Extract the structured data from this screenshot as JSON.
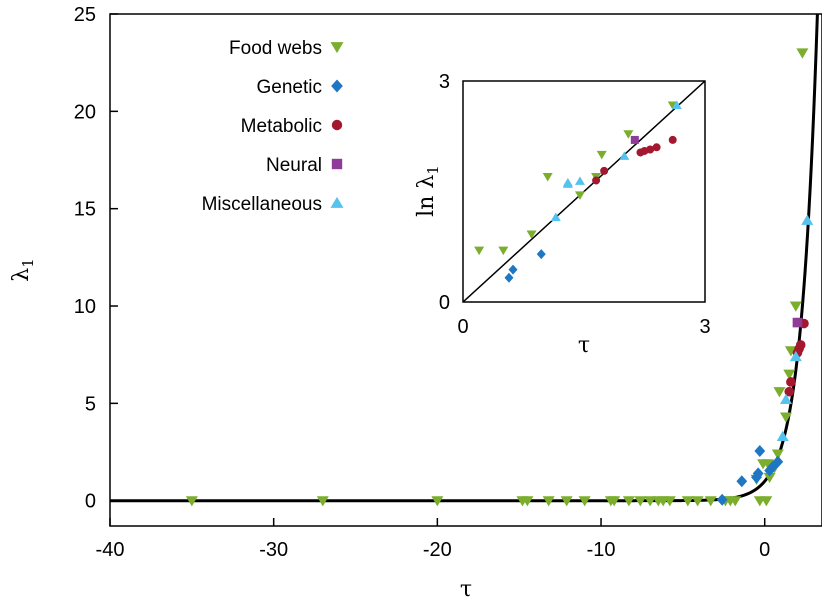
{
  "colors": {
    "food_webs": "#7cae2e",
    "genetic": "#1f77c4",
    "metabolic": "#a3172f",
    "neural": "#8e3b9a",
    "misc": "#55c3ee",
    "curve": "#000000"
  },
  "chart_data": [
    {
      "type": "scatter",
      "xlabel": "τ",
      "ylabel": "λ",
      "ylabel_sub": "1",
      "xlim": [
        -40,
        3.5
      ],
      "ylim": [
        -1.3,
        25
      ],
      "x_ticks": [
        -40,
        -30,
        -20,
        -10,
        0
      ],
      "x_tick_labels": [
        "-40",
        "-30",
        "-20",
        "-10",
        "0"
      ],
      "y_ticks": [
        0,
        5,
        10,
        15,
        20,
        25
      ],
      "y_tick_labels": [
        "0",
        "5",
        "10",
        "15",
        "20",
        "25"
      ],
      "grid": false,
      "legend_position": "top-left",
      "curve": "lambda = exp(tau)",
      "series": [
        {
          "name": "Food webs",
          "marker": "triangle-down",
          "color_key": "food_webs",
          "points": [
            [
              -35,
              0
            ],
            [
              -27,
              0
            ],
            [
              -20,
              0
            ],
            [
              -14.8,
              0
            ],
            [
              -14.5,
              0
            ],
            [
              -13.2,
              0
            ],
            [
              -12.1,
              0
            ],
            [
              -11,
              0
            ],
            [
              -9.4,
              0
            ],
            [
              -9.2,
              0
            ],
            [
              -8.3,
              0
            ],
            [
              -7.6,
              0
            ],
            [
              -7,
              0
            ],
            [
              -6.5,
              0
            ],
            [
              -6.2,
              0
            ],
            [
              -5.8,
              0
            ],
            [
              -4.7,
              0
            ],
            [
              -4.1,
              0
            ],
            [
              -3.3,
              0
            ],
            [
              -2.4,
              0
            ],
            [
              -2.1,
              0
            ],
            [
              -1.8,
              0
            ],
            [
              -0.3,
              0
            ],
            [
              0.1,
              0
            ],
            [
              -0.1,
              1.9
            ],
            [
              0.2,
              1.9
            ],
            [
              -0.5,
              1.1
            ],
            [
              0.3,
              1.2
            ],
            [
              0.6,
              1.7
            ],
            [
              0.8,
              2.4
            ],
            [
              0.9,
              5.6
            ],
            [
              1.3,
              4.3
            ],
            [
              1.5,
              6.5
            ],
            [
              1.6,
              7.7
            ],
            [
              1.9,
              10
            ],
            [
              2.3,
              23
            ]
          ]
        },
        {
          "name": "Genetic",
          "marker": "diamond",
          "color_key": "genetic",
          "points": [
            [
              -2.6,
              0.05
            ],
            [
              -1.4,
              1.0
            ],
            [
              -0.5,
              1.2
            ],
            [
              -0.4,
              1.4
            ],
            [
              -0.3,
              2.55
            ],
            [
              0.3,
              1.55
            ],
            [
              0.5,
              1.75
            ],
            [
              0.8,
              2.0
            ]
          ]
        },
        {
          "name": "Metabolic",
          "marker": "circle",
          "color_key": "metabolic",
          "points": [
            [
              1.5,
              5.6
            ],
            [
              1.6,
              6.1
            ],
            [
              2.0,
              7.6
            ],
            [
              2.1,
              7.8
            ],
            [
              2.2,
              8.0
            ],
            [
              2.4,
              9.1
            ]
          ]
        },
        {
          "name": "Neural",
          "marker": "square",
          "color_key": "neural",
          "points": [
            [
              2.0,
              9.15
            ]
          ]
        },
        {
          "name": "Miscellaneous",
          "marker": "triangle-up",
          "color_key": "misc",
          "points": [
            [
              1.1,
              3.3
            ],
            [
              1.3,
              5.2
            ],
            [
              1.9,
              7.4
            ],
            [
              2.6,
              14.4
            ]
          ]
        }
      ]
    },
    {
      "type": "scatter",
      "inset": true,
      "xlabel": "τ",
      "ylabel": "ln λ",
      "ylabel_sub": "1",
      "xlim": [
        0,
        3
      ],
      "ylim": [
        0,
        3
      ],
      "x_ticks": [
        0,
        3
      ],
      "x_tick_labels": [
        "0",
        "3"
      ],
      "y_ticks": [
        0,
        3
      ],
      "y_tick_labels": [
        "0",
        "3"
      ],
      "curve": "y = x",
      "series": [
        {
          "name": "Food webs",
          "marker": "triangle-down",
          "color_key": "food_webs",
          "points": [
            [
              0.2,
              0.7
            ],
            [
              0.5,
              0.7
            ],
            [
              0.85,
              0.92
            ],
            [
              1.05,
              1.7
            ],
            [
              1.45,
              1.45
            ],
            [
              1.65,
              1.7
            ],
            [
              1.72,
              2.0
            ],
            [
              2.05,
              2.28
            ],
            [
              2.6,
              2.67
            ]
          ]
        },
        {
          "name": "Genetic",
          "marker": "diamond",
          "color_key": "genetic",
          "points": [
            [
              0.57,
              0.33
            ],
            [
              0.62,
              0.44
            ],
            [
              0.97,
              0.65
            ]
          ]
        },
        {
          "name": "Metabolic",
          "marker": "circle",
          "color_key": "metabolic",
          "points": [
            [
              1.65,
              1.65
            ],
            [
              1.75,
              1.78
            ],
            [
              2.2,
              2.03
            ],
            [
              2.25,
              2.05
            ],
            [
              2.32,
              2.07
            ],
            [
              2.4,
              2.1
            ],
            [
              2.6,
              2.2
            ]
          ]
        },
        {
          "name": "Neural",
          "marker": "square",
          "color_key": "neural",
          "points": [
            [
              2.13,
              2.2
            ]
          ]
        },
        {
          "name": "Miscellaneous",
          "marker": "triangle-up",
          "color_key": "misc",
          "points": [
            [
              1.3,
              1.6
            ],
            [
              1.3,
              1.62
            ],
            [
              1.45,
              1.64
            ],
            [
              1.15,
              1.15
            ],
            [
              2.0,
              1.98
            ],
            [
              2.65,
              2.67
            ]
          ]
        }
      ]
    }
  ]
}
